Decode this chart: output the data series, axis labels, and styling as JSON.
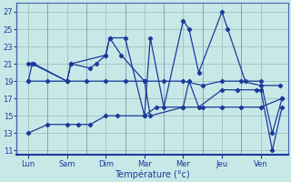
{
  "xlabel": "Température (°c)",
  "background_color": "#c8e8e8",
  "line_color": "#1a3a9a",
  "grid_color": "#9ababa",
  "ylim": [
    10.5,
    28.0
  ],
  "yticks": [
    11,
    13,
    15,
    17,
    19,
    21,
    23,
    25,
    27
  ],
  "days": [
    "Lun",
    "Sam",
    "Dim",
    "Mar",
    "Mer",
    "Jeu",
    "Ven"
  ],
  "num_days": 7,
  "series": [
    {
      "x": [
        0,
        0.15,
        1.0,
        1.1,
        1.6,
        1.75,
        2.0,
        2.1,
        2.5,
        3.0,
        3.15,
        3.5,
        4.0,
        4.15,
        4.4,
        5.0,
        5.15,
        5.6,
        6.0,
        6.3,
        6.55
      ],
      "y": [
        21,
        21,
        19,
        21,
        20.5,
        21,
        22,
        24,
        24,
        15,
        24,
        16,
        26,
        25,
        20,
        27,
        25,
        19,
        19,
        13,
        17
      ]
    },
    {
      "x": [
        0,
        0.5,
        1.0,
        1.5,
        2.0,
        2.5,
        3.0,
        3.5,
        4.0,
        4.5,
        5.0,
        5.5,
        6.0,
        6.5
      ],
      "y": [
        19,
        19,
        19,
        19,
        19,
        19,
        19,
        19,
        19,
        18.5,
        19,
        19,
        18.5,
        18.5
      ]
    },
    {
      "x": [
        0,
        0.5,
        1.0,
        1.3,
        1.6,
        2.0,
        2.3,
        3.0,
        3.3,
        4.0,
        4.5,
        5.0,
        5.5,
        6.0,
        6.55
      ],
      "y": [
        13,
        14,
        14,
        14,
        14,
        15,
        15,
        15,
        16,
        16,
        16,
        16,
        16,
        16,
        17
      ]
    },
    {
      "x": [
        0,
        0.1,
        1.0,
        1.1,
        2.0,
        2.1,
        2.4,
        3.0,
        3.15,
        4.0,
        4.15,
        4.4,
        5.0,
        5.4,
        5.9,
        6.0,
        6.3,
        6.55
      ],
      "y": [
        19,
        21,
        19,
        21,
        22,
        24,
        22,
        19,
        15,
        16,
        19,
        16,
        18,
        18,
        18,
        18,
        11,
        16
      ]
    }
  ]
}
